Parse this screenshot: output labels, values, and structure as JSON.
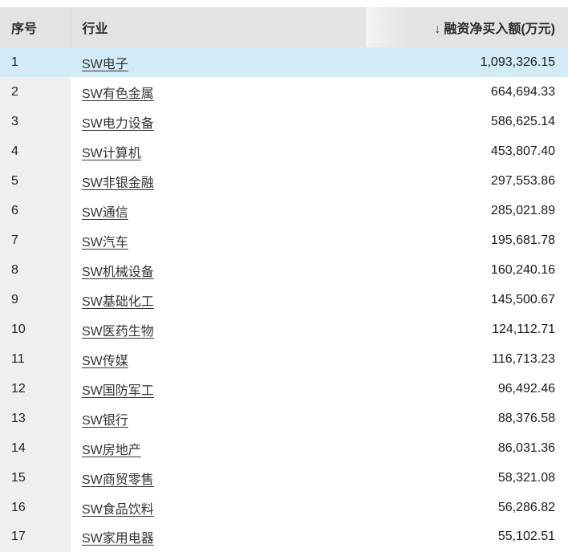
{
  "table": {
    "columns": {
      "index": "序号",
      "industry": "行业",
      "value": "融资净买入额(万元)"
    },
    "sort": {
      "arrow": "↓",
      "direction": "descending",
      "column": "融资净买入额(万元)"
    },
    "rows": [
      {
        "index": "1",
        "industry": "SW电子",
        "value": "1,093,326.15",
        "highlighted": true
      },
      {
        "index": "2",
        "industry": "SW有色金属",
        "value": "664,694.33",
        "highlighted": false
      },
      {
        "index": "3",
        "industry": "SW电力设备",
        "value": "586,625.14",
        "highlighted": false
      },
      {
        "index": "4",
        "industry": "SW计算机",
        "value": "453,807.40",
        "highlighted": false
      },
      {
        "index": "5",
        "industry": "SW非银金融",
        "value": "297,553.86",
        "highlighted": false
      },
      {
        "index": "6",
        "industry": "SW通信",
        "value": "285,021.89",
        "highlighted": false
      },
      {
        "index": "7",
        "industry": "SW汽车",
        "value": "195,681.78",
        "highlighted": false
      },
      {
        "index": "8",
        "industry": "SW机械设备",
        "value": "160,240.16",
        "highlighted": false
      },
      {
        "index": "9",
        "industry": "SW基础化工",
        "value": "145,500.67",
        "highlighted": false
      },
      {
        "index": "10",
        "industry": "SW医药生物",
        "value": "124,112.71",
        "highlighted": false
      },
      {
        "index": "11",
        "industry": "SW传媒",
        "value": "116,713.23",
        "highlighted": false
      },
      {
        "index": "12",
        "industry": "SW国防军工",
        "value": "96,492.46",
        "highlighted": false
      },
      {
        "index": "13",
        "industry": "SW银行",
        "value": "88,376.58",
        "highlighted": false
      },
      {
        "index": "14",
        "industry": "SW房地产",
        "value": "86,031.36",
        "highlighted": false
      },
      {
        "index": "15",
        "industry": "SW商贸零售",
        "value": "58,321.08",
        "highlighted": false
      },
      {
        "index": "16",
        "industry": "SW食品饮料",
        "value": "56,286.82",
        "highlighted": false
      },
      {
        "index": "17",
        "industry": "SW家用电器",
        "value": "55,102.51",
        "highlighted": false
      }
    ]
  },
  "colors": {
    "header_bg": "#e3e3e3",
    "index_column_bg": "#efefef",
    "highlight_row_bg": "#d2ebf6",
    "table_border": "#d9d9d9",
    "text": "#222222"
  }
}
